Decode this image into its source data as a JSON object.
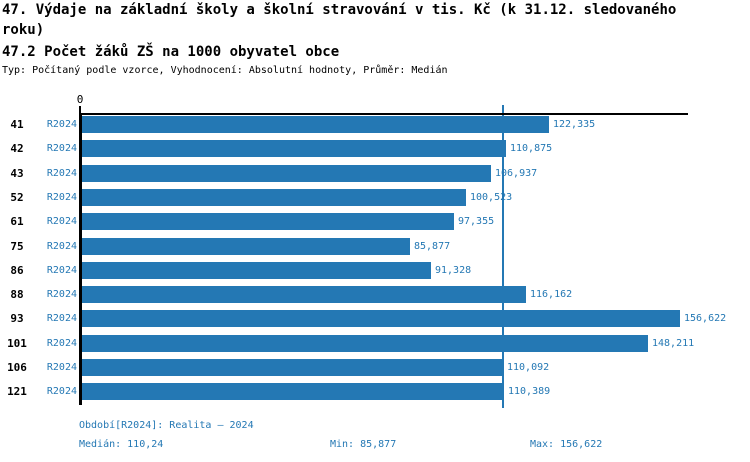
{
  "header": {
    "title": "47. Výdaje na základní školy a školní stravování v tis. Kč (k 31.12. sledovaného roku)",
    "indicator": "47.2 Počet žáků ZŠ na 1000 obyvatel obce",
    "meta": "Typ: Počítaný podle vzorce, Vyhodnocení: Absolutní hodnoty, Průměr: Medián"
  },
  "chart_data": {
    "type": "bar",
    "orientation": "horizontal",
    "series_name": "R2024",
    "categories": [
      "41",
      "42",
      "43",
      "52",
      "61",
      "75",
      "86",
      "88",
      "93",
      "101",
      "106",
      "121"
    ],
    "values": [
      122.335,
      110.875,
      106.937,
      100.523,
      97.355,
      85.877,
      91.328,
      116.162,
      156.622,
      148.211,
      110.092,
      110.389
    ],
    "value_labels": [
      "122,335",
      "110,875",
      "106,937",
      "100,523",
      "97,355",
      "85,877",
      "91,328",
      "116,162",
      "156,622",
      "148,211",
      "110,092",
      "110,389"
    ],
    "median_value": 110.24,
    "origin_tick_label": "0",
    "xlim": [
      0,
      158.6
    ],
    "grid": false,
    "legend": false
  },
  "footer": {
    "period": "Období[R2024]: Realita – 2024",
    "median": "Medián: 110,24",
    "min": "Min: 85,877",
    "max": "Max: 156,622"
  },
  "colors": {
    "bar": "#2478b4",
    "accent_text": "#2478b4",
    "axis": "#000000",
    "background": "#ffffff"
  }
}
